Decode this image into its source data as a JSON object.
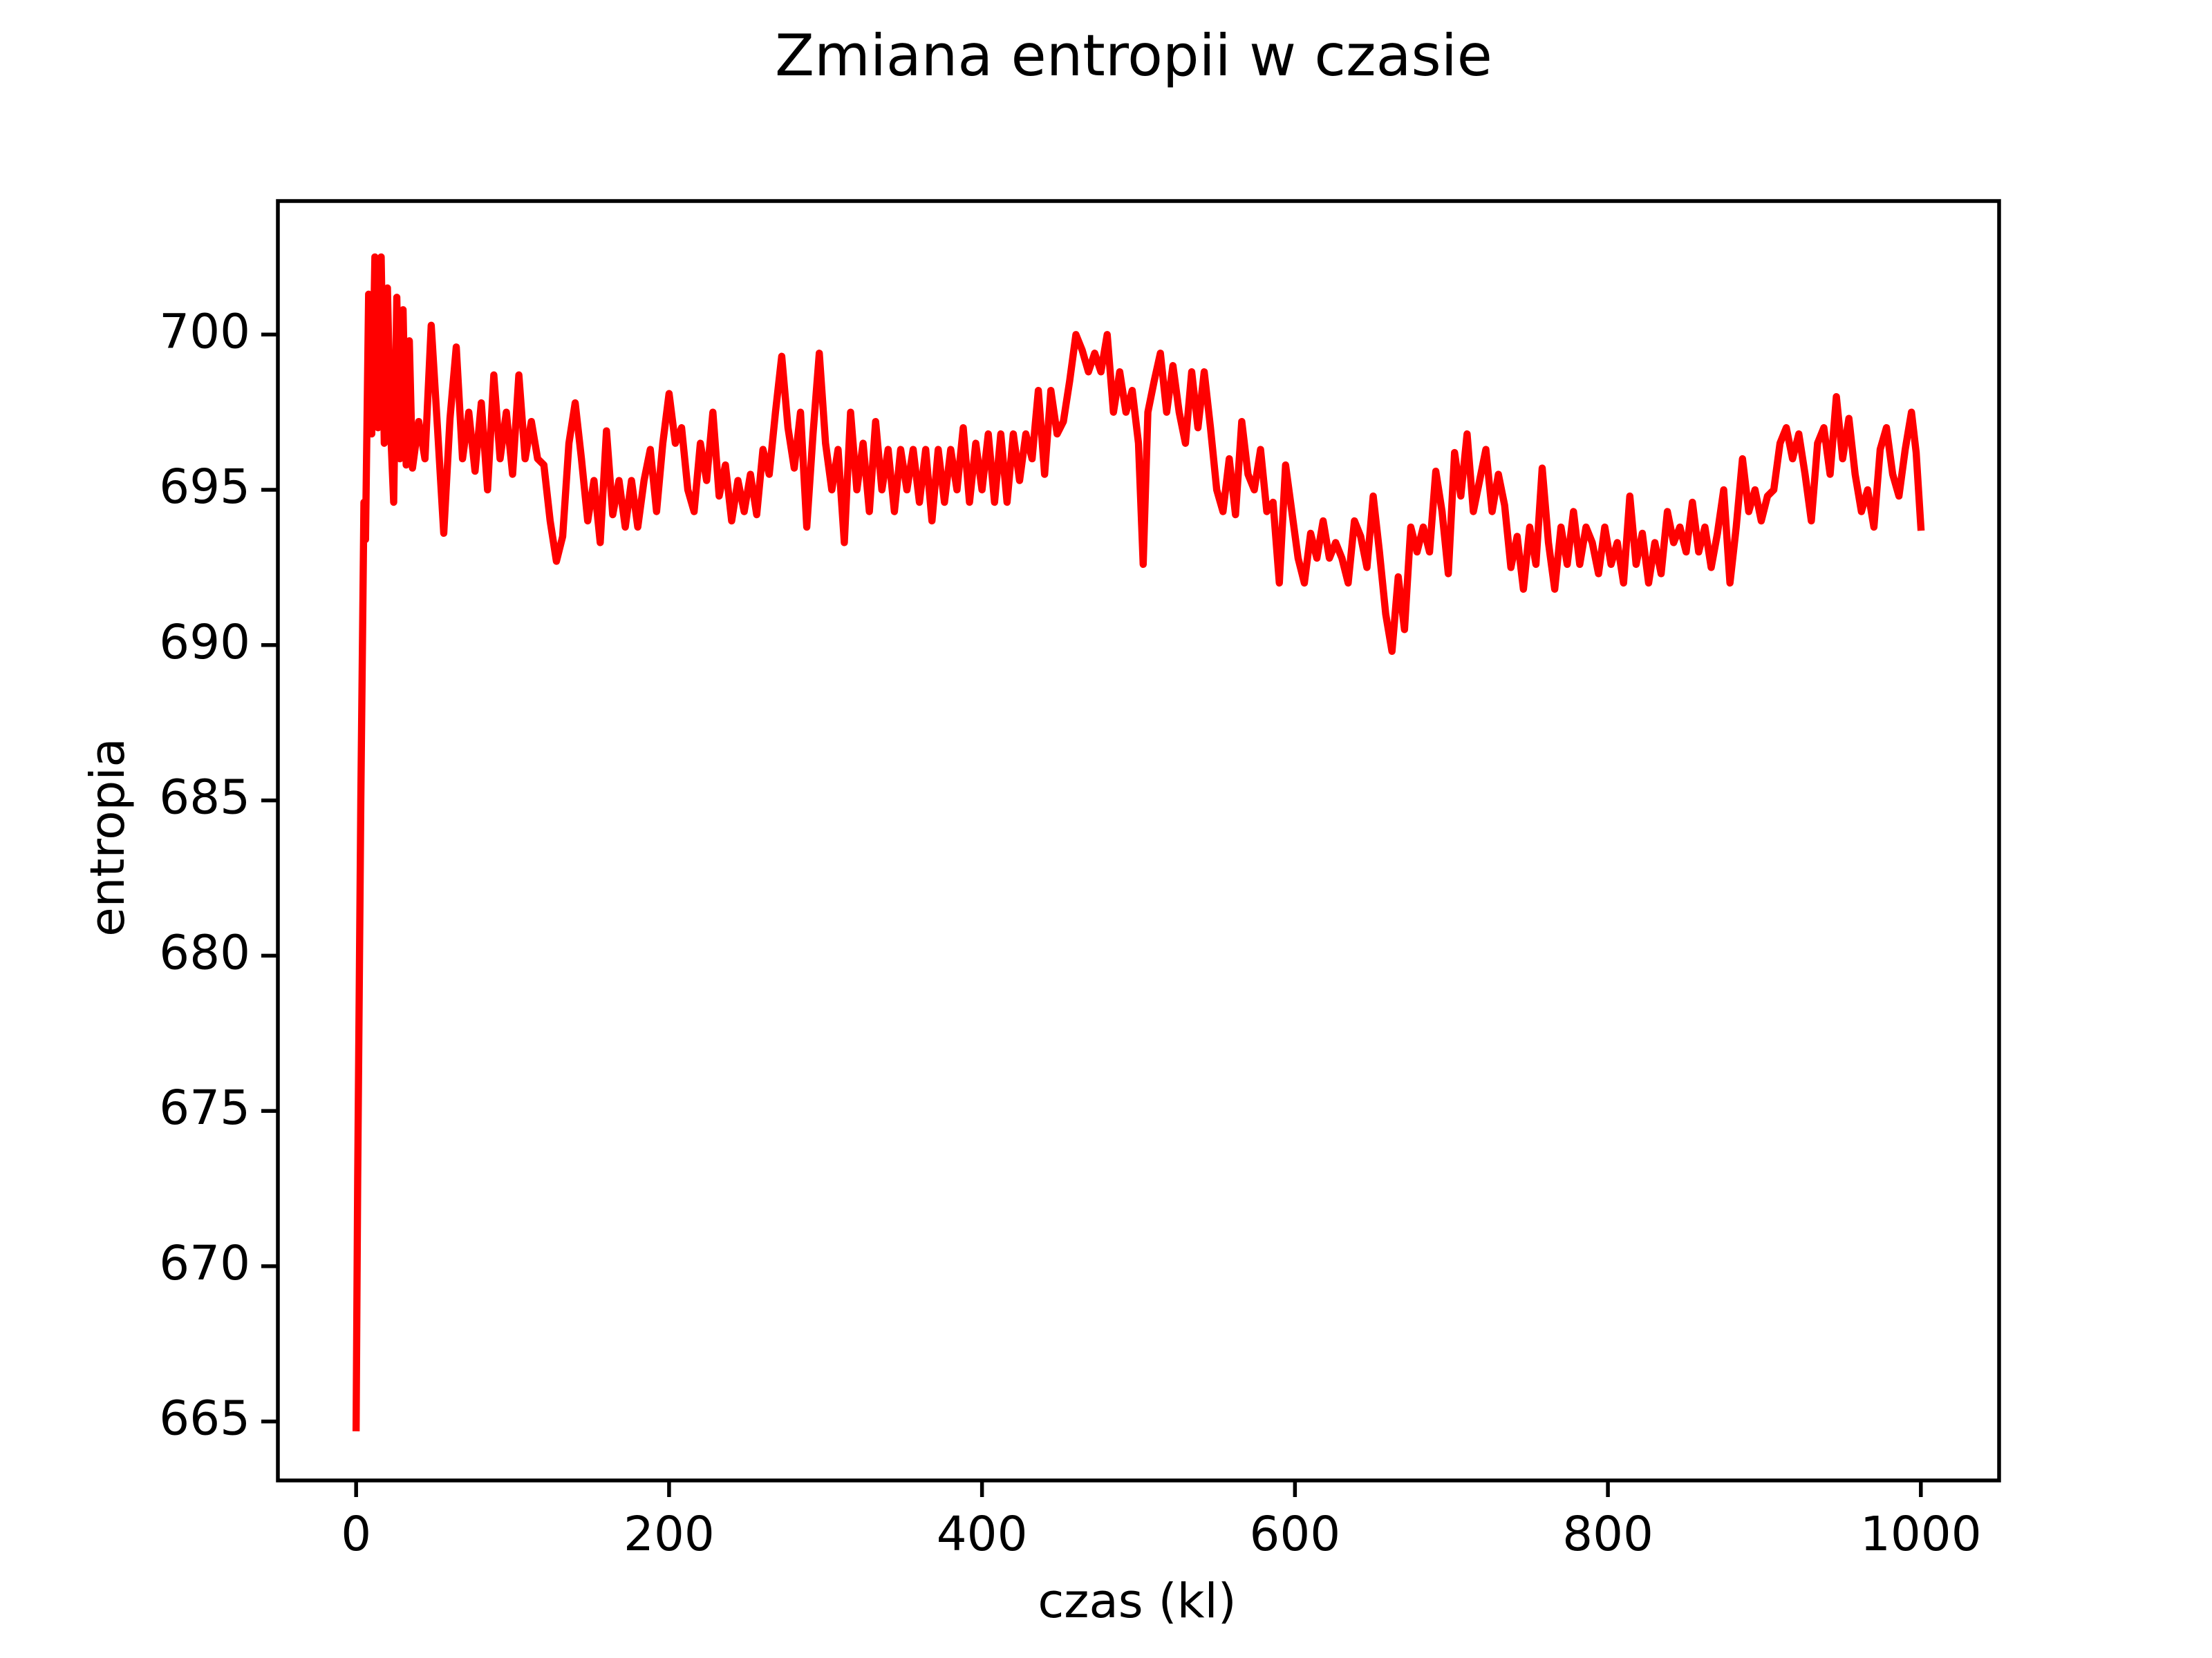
{
  "chart_data": {
    "type": "line",
    "title": "Zmiana entropii w czasie",
    "x_label": "czas (kl)",
    "y_label": "entropia",
    "xlim": [
      -50,
      1050
    ],
    "ylim": [
      663.1,
      704.3
    ],
    "xticks": [
      0,
      200,
      400,
      600,
      800,
      1000
    ],
    "yticks": [
      665,
      670,
      675,
      680,
      685,
      690,
      695,
      700
    ],
    "series": [
      {
        "color": "#ff0000",
        "x": [
          0,
          1,
          3,
          5,
          6,
          8,
          10,
          12,
          14,
          16,
          18,
          20,
          22,
          24,
          26,
          28,
          30,
          32,
          34,
          36,
          40,
          44,
          48,
          52,
          56,
          60,
          64,
          68,
          72,
          76,
          80,
          84,
          88,
          92,
          96,
          100,
          104,
          108,
          112,
          116,
          120,
          124,
          128,
          132,
          136,
          140,
          144,
          148,
          152,
          156,
          160,
          164,
          168,
          172,
          176,
          180,
          184,
          188,
          192,
          196,
          200,
          204,
          208,
          212,
          216,
          220,
          224,
          228,
          232,
          236,
          240,
          244,
          248,
          252,
          256,
          260,
          264,
          268,
          272,
          276,
          280,
          284,
          288,
          292,
          296,
          300,
          304,
          308,
          312,
          316,
          320,
          324,
          328,
          332,
          336,
          340,
          344,
          348,
          352,
          356,
          360,
          364,
          368,
          372,
          376,
          380,
          384,
          388,
          392,
          396,
          400,
          404,
          408,
          412,
          416,
          420,
          424,
          428,
          432,
          436,
          440,
          444,
          448,
          452,
          456,
          460,
          464,
          468,
          472,
          476,
          480,
          484,
          488,
          492,
          496,
          500,
          503,
          506,
          510,
          514,
          518,
          522,
          526,
          530,
          534,
          538,
          542,
          546,
          550,
          554,
          558,
          562,
          566,
          570,
          574,
          578,
          582,
          586,
          590,
          594,
          598,
          602,
          606,
          610,
          614,
          618,
          622,
          626,
          630,
          634,
          638,
          642,
          646,
          650,
          654,
          658,
          662,
          666,
          670,
          674,
          678,
          682,
          686,
          690,
          694,
          698,
          702,
          706,
          710,
          714,
          718,
          722,
          726,
          730,
          734,
          738,
          742,
          746,
          750,
          754,
          758,
          762,
          766,
          770,
          774,
          778,
          782,
          786,
          790,
          794,
          798,
          802,
          806,
          810,
          814,
          818,
          822,
          826,
          830,
          834,
          838,
          842,
          846,
          850,
          854,
          858,
          862,
          866,
          870,
          874,
          878,
          882,
          886,
          890,
          894,
          898,
          902,
          906,
          910,
          914,
          918,
          922,
          926,
          930,
          934,
          938,
          942,
          946,
          950,
          954,
          958,
          962,
          966,
          970,
          974,
          978,
          982,
          986,
          990,
          994,
          997,
          1000
        ],
        "values": [
          664.8,
          672.8,
          685,
          694.6,
          693.4,
          701.3,
          696.8,
          702.5,
          697,
          702.5,
          696.5,
          701.5,
          697,
          694.6,
          701.2,
          696,
          700.8,
          695.8,
          699.8,
          695.7,
          697.2,
          696,
          700.3,
          697,
          693.6,
          697.3,
          699.6,
          696,
          697.5,
          695.6,
          697.8,
          695,
          698.7,
          696,
          697.5,
          695.5,
          698.7,
          696,
          697.2,
          696,
          695.8,
          694,
          692.7,
          693.5,
          696.5,
          697.8,
          696,
          694,
          695.3,
          693.3,
          696.9,
          694.2,
          695.3,
          693.8,
          695.3,
          693.8,
          695.3,
          696.3,
          694.3,
          696.5,
          698.1,
          696.5,
          697,
          695,
          694.3,
          696.5,
          695.3,
          697.5,
          694.8,
          695.8,
          694,
          695.3,
          694.3,
          695.5,
          694.2,
          696.3,
          695.5,
          697.5,
          699.3,
          697,
          695.7,
          697.5,
          693.8,
          696.8,
          699.4,
          696.5,
          695,
          696.3,
          693.3,
          697.5,
          695,
          696.5,
          694.3,
          697.2,
          695,
          696.3,
          694.3,
          696.3,
          695,
          696.3,
          694.6,
          696.3,
          694,
          696.3,
          694.6,
          696.3,
          695,
          697,
          694.6,
          696.5,
          695,
          696.8,
          694.6,
          696.8,
          694.6,
          696.8,
          695.3,
          696.8,
          696,
          698.2,
          695.5,
          698.2,
          696.8,
          697.2,
          698.5,
          700,
          699.5,
          698.8,
          699.4,
          698.8,
          700,
          697.5,
          698.8,
          697.5,
          698.2,
          696.5,
          692.6,
          697.5,
          698.5,
          699.4,
          697.5,
          699,
          697.5,
          696.5,
          698.8,
          697,
          698.8,
          697,
          695,
          694.3,
          696,
          694.2,
          697.2,
          695.5,
          695,
          696.3,
          694.3,
          694.6,
          692,
          695.8,
          694.3,
          692.8,
          692,
          693.6,
          692.8,
          694,
          692.8,
          693.3,
          692.8,
          692,
          694,
          693.5,
          692.5,
          694.8,
          693,
          691,
          689.8,
          692.2,
          690.5,
          693.8,
          693,
          693.8,
          693,
          695.6,
          694.3,
          692.3,
          696.2,
          694.8,
          696.8,
          694.3,
          695.3,
          696.3,
          694.3,
          695.5,
          694.5,
          692.5,
          693.5,
          691.8,
          693.8,
          692.6,
          695.7,
          693.3,
          691.8,
          693.8,
          692.6,
          694.3,
          692.6,
          693.8,
          693.3,
          692.3,
          693.8,
          692.6,
          693.3,
          692,
          694.8,
          692.6,
          693.6,
          692,
          693.3,
          692.3,
          694.3,
          693.3,
          693.8,
          693,
          694.6,
          693,
          693.8,
          692.5,
          693.6,
          695,
          692,
          693.8,
          696,
          694.3,
          695,
          694,
          694.8,
          695,
          696.5,
          697,
          696,
          696.8,
          695.5,
          694,
          696.5,
          697,
          695.5,
          698,
          696,
          697.3,
          695.5,
          694.3,
          695,
          693.8,
          696.3,
          697,
          695.5,
          694.8,
          696.3,
          697.5,
          696.2,
          693.8
        ]
      }
    ]
  }
}
